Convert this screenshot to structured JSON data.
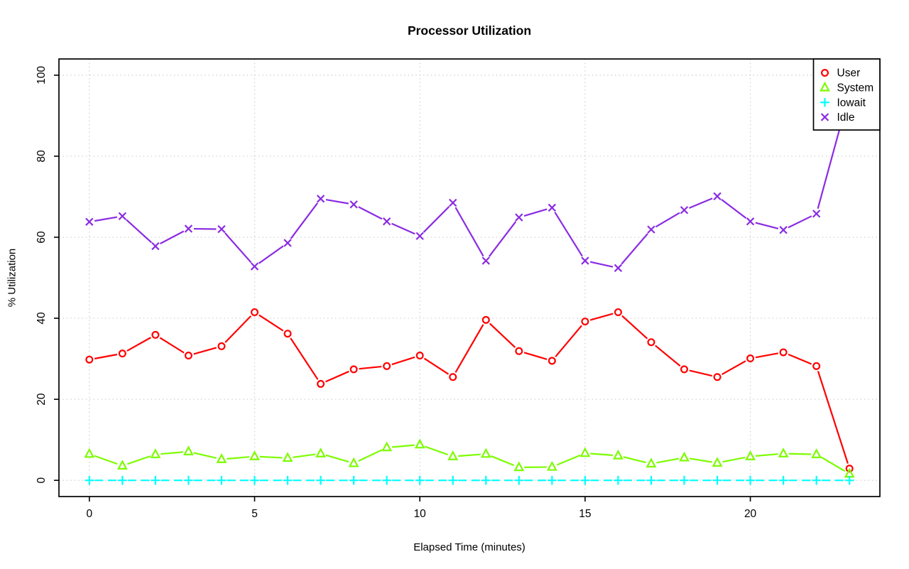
{
  "chart_data": {
    "type": "line",
    "title": "Processor Utilization",
    "xlabel": "Elapsed Time (minutes)",
    "ylabel": "% Utilization",
    "x": [
      0,
      1,
      2,
      3,
      4,
      5,
      6,
      7,
      8,
      9,
      10,
      11,
      12,
      13,
      14,
      15,
      16,
      17,
      18,
      19,
      20,
      21,
      22,
      23
    ],
    "xticks": [
      0,
      5,
      10,
      15,
      20
    ],
    "yticks": [
      0,
      20,
      40,
      60,
      80,
      100
    ],
    "xlim": [
      -0.92,
      23.92
    ],
    "ylim": [
      -4,
      104
    ],
    "grid": true,
    "grid_style": "dotted",
    "legend_position": "top-right",
    "colors": {
      "user": "#FF0000",
      "system": "#7CFC00",
      "iowait": "#00FFFF",
      "idle": "#8A2BE2",
      "grid": "#D4D4D4",
      "axis": "#000000"
    },
    "series": [
      {
        "name": "User",
        "color": "#FF0000",
        "marker": "circle",
        "linestyle": "solid",
        "values": [
          29.8,
          31.3,
          35.9,
          30.8,
          33.1,
          41.5,
          36.2,
          23.8,
          27.4,
          28.2,
          30.8,
          25.5,
          39.6,
          31.9,
          29.5,
          39.2,
          41.5,
          34.1,
          27.4,
          25.5,
          30.1,
          31.6,
          28.2,
          2.9
        ]
      },
      {
        "name": "System",
        "color": "#7CFC00",
        "marker": "triangle",
        "linestyle": "solid",
        "values": [
          6.5,
          3.6,
          6.4,
          7.1,
          5.2,
          5.9,
          5.5,
          6.6,
          4.2,
          8.1,
          8.8,
          5.9,
          6.5,
          3.2,
          3.3,
          6.7,
          6.1,
          4.1,
          5.6,
          4.3,
          5.9,
          6.6,
          6.4,
          1.6
        ]
      },
      {
        "name": "Iowait",
        "color": "#00FFFF",
        "marker": "plus",
        "linestyle": "dashed",
        "values": [
          0,
          0,
          0,
          0,
          0,
          0,
          0,
          0,
          0,
          0,
          0,
          0,
          0,
          0,
          0,
          0,
          0,
          0,
          0,
          0,
          0,
          0,
          0,
          0
        ]
      },
      {
        "name": "Idle",
        "color": "#8A2BE2",
        "marker": "x",
        "linestyle": "solid",
        "values": [
          63.8,
          65.2,
          57.8,
          62.1,
          62.0,
          52.8,
          58.6,
          69.5,
          68.1,
          63.9,
          60.3,
          68.5,
          54.2,
          64.9,
          67.3,
          54.2,
          52.4,
          61.9,
          66.7,
          70.1,
          63.9,
          61.8,
          65.8,
          95.6
        ]
      }
    ]
  }
}
